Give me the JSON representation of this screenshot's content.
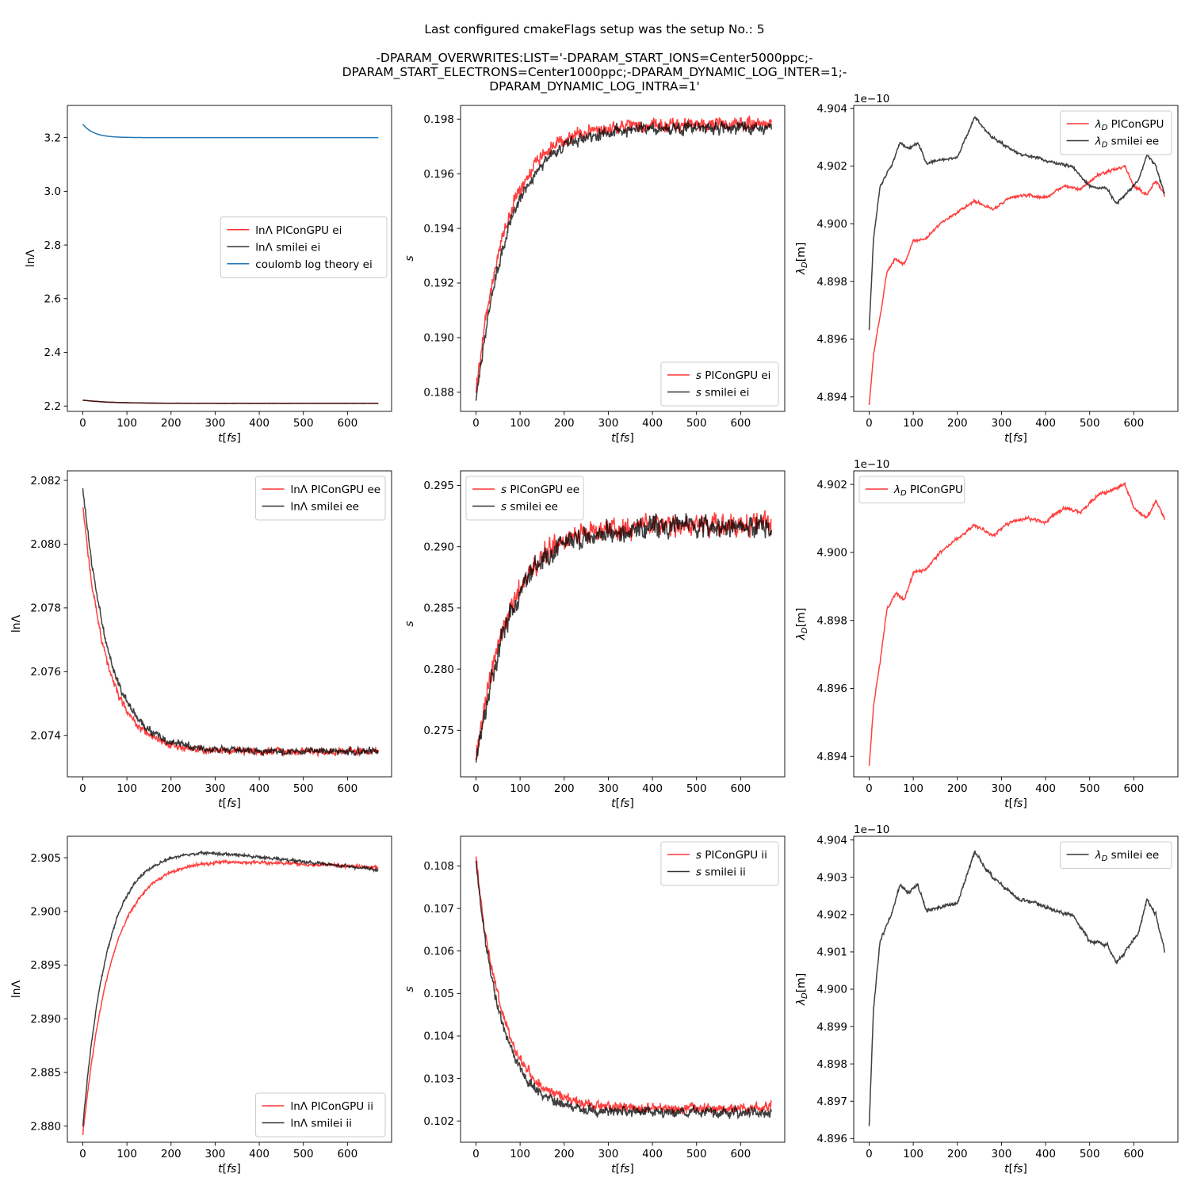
{
  "figure": {
    "title_lines": [
      "Last configured cmakeFlags setup was the setup No.: 5",
      "",
      "-DPARAM_OVERWRITES:LIST='-DPARAM_START_IONS=Center5000ppc;-",
      "DPARAM_START_ELECTRONS=Center1000ppc;-DPARAM_DYNAMIC_LOG_INTER=1;-",
      "DPARAM_DYNAMIC_LOG_INTRA=1'"
    ]
  },
  "colors": {
    "piconpgu_red": "#ff0000",
    "smilei_black": "#000000",
    "theory_blue": "#1f77b4"
  },
  "chart_data": [
    {
      "type": "line",
      "xlabel": "t[fs]",
      "ylabel": "lnΛ",
      "xlim": [
        -35,
        700
      ],
      "ylim": [
        2.18,
        3.32
      ],
      "xticks": [
        0,
        100,
        200,
        300,
        400,
        500,
        600
      ],
      "yticks": [
        2.2,
        2.4,
        2.6,
        2.8,
        3.0,
        3.2
      ],
      "ytick_labels": [
        "2.2",
        "2.4",
        "2.6",
        "2.8",
        "3.0",
        "3.2"
      ],
      "legend": "center-right",
      "series": [
        {
          "name": "lnΛ PIConGPU ei",
          "color": "#ff0000",
          "shape": "exp",
          "start": 2.222,
          "end": 2.21,
          "tau": 60,
          "noise": 0.0005
        },
        {
          "name": "lnΛ smilei ei",
          "color": "#000000",
          "shape": "exp",
          "start": 2.222,
          "end": 2.21,
          "tau": 60,
          "noise": 0.0005
        },
        {
          "name": "coulomb log theory ei",
          "color": "#1f77b4",
          "shape": "exp",
          "start": 3.25,
          "end": 3.2,
          "tau": 25,
          "noise": 0
        }
      ]
    },
    {
      "type": "line",
      "xlabel": "t[fs]",
      "ylabel": "s",
      "xlim": [
        -35,
        700
      ],
      "ylim": [
        0.1873,
        0.1985
      ],
      "xticks": [
        0,
        100,
        200,
        300,
        400,
        500,
        600
      ],
      "yticks": [
        0.188,
        0.19,
        0.192,
        0.194,
        0.196,
        0.198
      ],
      "ytick_labels": [
        "0.188",
        "0.190",
        "0.192",
        "0.194",
        "0.196",
        "0.198"
      ],
      "legend": "bottom-right",
      "series": [
        {
          "name": "s PIConGPU ei",
          "color": "#ff0000",
          "shape": "exp",
          "start": 0.188,
          "end": 0.1978,
          "tau": 70,
          "noise": 0.00025
        },
        {
          "name": "s smilei ei",
          "color": "#000000",
          "shape": "exp",
          "start": 0.1877,
          "end": 0.1977,
          "tau": 75,
          "noise": 0.00022
        }
      ]
    },
    {
      "type": "line",
      "xlabel": "t[fs]",
      "ylabel": "λD[m]",
      "offset_text": "1e−10",
      "xlim": [
        -35,
        700
      ],
      "ylim": [
        4.8935,
        4.9041
      ],
      "xticks": [
        0,
        100,
        200,
        300,
        400,
        500,
        600
      ],
      "yticks": [
        4.894,
        4.896,
        4.898,
        4.9,
        4.902,
        4.904
      ],
      "ytick_labels": [
        "4.894",
        "4.896",
        "4.898",
        "4.900",
        "4.902",
        "4.904"
      ],
      "legend": "top-right",
      "series": [
        {
          "name": "λD PIConGPU",
          "color": "#ff0000",
          "shape": "points",
          "points": [
            [
              0,
              4.8937
            ],
            [
              10,
              4.8955
            ],
            [
              25,
              4.8968
            ],
            [
              40,
              4.8983
            ],
            [
              60,
              4.8988
            ],
            [
              80,
              4.8986
            ],
            [
              100,
              4.8994
            ],
            [
              130,
              4.8995
            ],
            [
              160,
              4.9
            ],
            [
              200,
              4.9004
            ],
            [
              240,
              4.9008
            ],
            [
              280,
              4.9005
            ],
            [
              320,
              4.9009
            ],
            [
              360,
              4.901
            ],
            [
              400,
              4.9009
            ],
            [
              440,
              4.9013
            ],
            [
              480,
              4.9012
            ],
            [
              520,
              4.9017
            ],
            [
              560,
              4.9019
            ],
            [
              580,
              4.902
            ],
            [
              600,
              4.9013
            ],
            [
              630,
              4.901
            ],
            [
              650,
              4.9015
            ],
            [
              670,
              4.901
            ]
          ],
          "noise": 5e-05
        },
        {
          "name": "λD smilei ee",
          "color": "#000000",
          "shape": "points",
          "points": [
            [
              0,
              4.8963
            ],
            [
              10,
              4.8995
            ],
            [
              25,
              4.9013
            ],
            [
              50,
              4.902
            ],
            [
              70,
              4.9028
            ],
            [
              90,
              4.9026
            ],
            [
              110,
              4.9028
            ],
            [
              130,
              4.9021
            ],
            [
              160,
              4.9022
            ],
            [
              200,
              4.9023
            ],
            [
              220,
              4.903
            ],
            [
              240,
              4.9037
            ],
            [
              260,
              4.9033
            ],
            [
              280,
              4.903
            ],
            [
              300,
              4.9028
            ],
            [
              340,
              4.9024
            ],
            [
              380,
              4.9023
            ],
            [
              420,
              4.9021
            ],
            [
              460,
              4.902
            ],
            [
              500,
              4.9013
            ],
            [
              540,
              4.9012
            ],
            [
              560,
              4.9007
            ],
            [
              580,
              4.901
            ],
            [
              610,
              4.9015
            ],
            [
              630,
              4.9024
            ],
            [
              650,
              4.902
            ],
            [
              670,
              4.901
            ]
          ],
          "noise": 5e-05
        }
      ]
    },
    {
      "type": "line",
      "xlabel": "t[fs]",
      "ylabel": "lnΛ",
      "xlim": [
        -35,
        700
      ],
      "ylim": [
        2.0727,
        2.0823
      ],
      "xticks": [
        0,
        100,
        200,
        300,
        400,
        500,
        600
      ],
      "yticks": [
        2.074,
        2.076,
        2.078,
        2.08,
        2.082
      ],
      "ytick_labels": [
        "2.074",
        "2.076",
        "2.078",
        "2.080",
        "2.082"
      ],
      "legend": "top-right",
      "series": [
        {
          "name": "lnΛ PIConGPU ee",
          "color": "#ff0000",
          "shape": "exp",
          "start": 2.0812,
          "end": 2.0735,
          "tau": 55,
          "noise": 0.00012
        },
        {
          "name": "lnΛ smilei ee",
          "color": "#000000",
          "shape": "exp",
          "start": 2.0818,
          "end": 2.0735,
          "tau": 60,
          "noise": 0.00012
        }
      ]
    },
    {
      "type": "line",
      "xlabel": "t[fs]",
      "ylabel": "s",
      "xlim": [
        -35,
        700
      ],
      "ylim": [
        0.2712,
        0.2962
      ],
      "xticks": [
        0,
        100,
        200,
        300,
        400,
        500,
        600
      ],
      "yticks": [
        0.275,
        0.28,
        0.285,
        0.29,
        0.295
      ],
      "ytick_labels": [
        "0.275",
        "0.280",
        "0.285",
        "0.290",
        "0.295"
      ],
      "legend": "top-left",
      "series": [
        {
          "name": "s PIConGPU ee",
          "color": "#ff0000",
          "shape": "exp",
          "start": 0.2725,
          "end": 0.2918,
          "tau": 75,
          "noise": 0.0009
        },
        {
          "name": "s smilei ee",
          "color": "#000000",
          "shape": "exp",
          "start": 0.2723,
          "end": 0.2916,
          "tau": 78,
          "noise": 0.0009
        }
      ]
    },
    {
      "type": "line",
      "xlabel": "t[fs]",
      "ylabel": "λD[m]",
      "offset_text": "1e−10",
      "xlim": [
        -35,
        700
      ],
      "ylim": [
        4.8934,
        4.9024
      ],
      "xticks": [
        0,
        100,
        200,
        300,
        400,
        500,
        600
      ],
      "yticks": [
        4.894,
        4.896,
        4.898,
        4.9,
        4.902
      ],
      "ytick_labels": [
        "4.894",
        "4.896",
        "4.898",
        "4.900",
        "4.902"
      ],
      "legend": "top-left",
      "series": [
        {
          "name": "λD PIConGPU",
          "color": "#ff0000",
          "shape": "points",
          "points": [
            [
              0,
              4.8937
            ],
            [
              10,
              4.8955
            ],
            [
              25,
              4.8968
            ],
            [
              40,
              4.8983
            ],
            [
              60,
              4.8988
            ],
            [
              80,
              4.8986
            ],
            [
              100,
              4.8994
            ],
            [
              130,
              4.8995
            ],
            [
              160,
              4.9
            ],
            [
              200,
              4.9004
            ],
            [
              240,
              4.9008
            ],
            [
              280,
              4.9005
            ],
            [
              320,
              4.9009
            ],
            [
              360,
              4.901
            ],
            [
              400,
              4.9009
            ],
            [
              440,
              4.9013
            ],
            [
              480,
              4.9012
            ],
            [
              520,
              4.9017
            ],
            [
              560,
              4.9019
            ],
            [
              580,
              4.902
            ],
            [
              600,
              4.9013
            ],
            [
              630,
              4.901
            ],
            [
              650,
              4.9015
            ],
            [
              670,
              4.901
            ]
          ],
          "noise": 5e-05
        }
      ]
    },
    {
      "type": "line",
      "xlabel": "t[fs]",
      "ylabel": "lnΛ",
      "xlim": [
        -35,
        700
      ],
      "ylim": [
        2.8785,
        2.907
      ],
      "xticks": [
        0,
        100,
        200,
        300,
        400,
        500,
        600
      ],
      "yticks": [
        2.88,
        2.885,
        2.89,
        2.895,
        2.9,
        2.905
      ],
      "ytick_labels": [
        "2.880",
        "2.885",
        "2.890",
        "2.895",
        "2.900",
        "2.905"
      ],
      "legend": "bottom-right",
      "series": [
        {
          "name": "lnΛ PIConGPU ii",
          "color": "#ff0000",
          "shape": "rise_peak",
          "start": 2.8792,
          "peak": 2.9048,
          "peak_t": 300,
          "end": 2.9041,
          "tau": 65,
          "noise": 0.00015
        },
        {
          "name": "lnΛ smilei ii",
          "color": "#000000",
          "shape": "rise_peak",
          "start": 2.88,
          "peak": 2.9056,
          "peak_t": 280,
          "end": 2.9039,
          "tau": 55,
          "noise": 0.00015
        }
      ]
    },
    {
      "type": "line",
      "xlabel": "t[fs]",
      "ylabel": "s",
      "xlim": [
        -35,
        700
      ],
      "ylim": [
        0.1015,
        0.1087
      ],
      "xticks": [
        0,
        100,
        200,
        300,
        400,
        500,
        600
      ],
      "yticks": [
        0.102,
        0.103,
        0.104,
        0.105,
        0.106,
        0.107,
        0.108
      ],
      "ytick_labels": [
        "0.102",
        "0.103",
        "0.104",
        "0.105",
        "0.106",
        "0.107",
        "0.108"
      ],
      "legend": "top-right",
      "series": [
        {
          "name": "s PIConGPU ii",
          "color": "#ff0000",
          "shape": "exp",
          "start": 0.1082,
          "end": 0.1023,
          "tau": 62,
          "noise": 0.00012
        },
        {
          "name": "s smilei ii",
          "color": "#000000",
          "shape": "exp",
          "start": 0.1081,
          "end": 0.1022,
          "tau": 58,
          "noise": 0.00012
        }
      ]
    },
    {
      "type": "line",
      "xlabel": "t[fs]",
      "ylabel": "λD[m]",
      "offset_text": "1e−10",
      "xlim": [
        -35,
        700
      ],
      "ylim": [
        4.8959,
        4.9041
      ],
      "xticks": [
        0,
        100,
        200,
        300,
        400,
        500,
        600
      ],
      "yticks": [
        4.896,
        4.897,
        4.898,
        4.899,
        4.9,
        4.901,
        4.902,
        4.903,
        4.904
      ],
      "ytick_labels": [
        "4.896",
        "4.897",
        "4.898",
        "4.899",
        "4.900",
        "4.901",
        "4.902",
        "4.903",
        "4.904"
      ],
      "legend": "top-right",
      "series": [
        {
          "name": "λD smilei ee",
          "color": "#000000",
          "shape": "points",
          "points": [
            [
              0,
              4.8963
            ],
            [
              10,
              4.8995
            ],
            [
              25,
              4.9013
            ],
            [
              50,
              4.902
            ],
            [
              70,
              4.9028
            ],
            [
              90,
              4.9026
            ],
            [
              110,
              4.9028
            ],
            [
              130,
              4.9021
            ],
            [
              160,
              4.9022
            ],
            [
              200,
              4.9023
            ],
            [
              220,
              4.903
            ],
            [
              240,
              4.9037
            ],
            [
              260,
              4.9033
            ],
            [
              280,
              4.903
            ],
            [
              300,
              4.9028
            ],
            [
              340,
              4.9024
            ],
            [
              380,
              4.9023
            ],
            [
              420,
              4.9021
            ],
            [
              460,
              4.902
            ],
            [
              500,
              4.9013
            ],
            [
              540,
              4.9012
            ],
            [
              560,
              4.9007
            ],
            [
              580,
              4.901
            ],
            [
              610,
              4.9015
            ],
            [
              630,
              4.9024
            ],
            [
              650,
              4.902
            ],
            [
              670,
              4.901
            ]
          ],
          "noise": 5e-05
        }
      ]
    }
  ]
}
